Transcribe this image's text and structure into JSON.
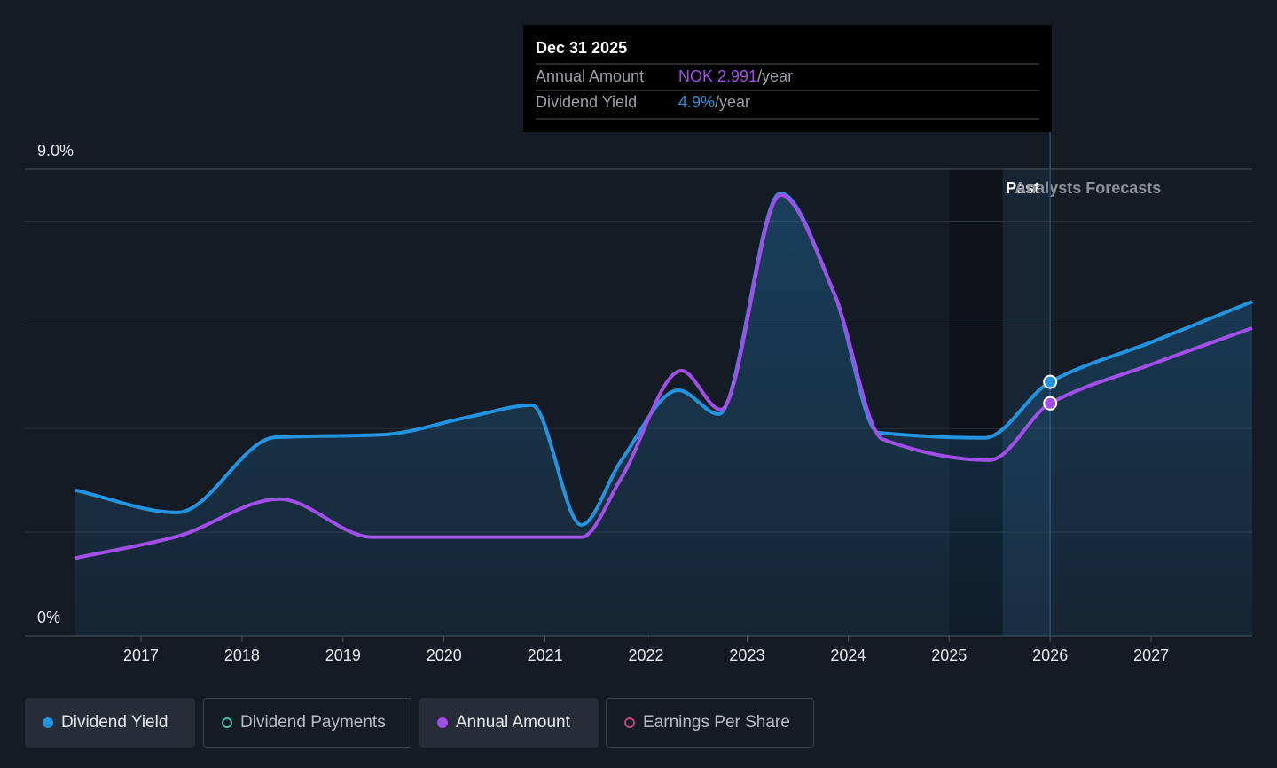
{
  "chart_data": {
    "type": "line",
    "ylim": [
      0,
      9
    ],
    "yticks": [
      {
        "value": 0,
        "label": "0%"
      },
      {
        "value": 9,
        "label": "9.0%"
      }
    ],
    "gridlines": [
      2,
      4,
      6,
      8
    ],
    "y2lim": [
      0,
      6.0
    ],
    "xlim": [
      2015.85,
      2028.0
    ],
    "xticks": [
      2017,
      2018,
      2019,
      2020,
      2021,
      2022,
      2023,
      2024,
      2025,
      2026,
      2027
    ],
    "past_region": [
      2025,
      2026
    ],
    "past_label": "Past",
    "forecast_label": "Analysts Forecasts",
    "series": [
      {
        "name": "Dividend Yield",
        "color": "#2394df",
        "x": [
          2016.35,
          2017.36,
          2018.33,
          2019.38,
          2020.26,
          2020.87,
          2021.36,
          2021.75,
          2022.32,
          2022.72,
          2023.33,
          2023.86,
          2024.3,
          2025.35,
          2026.0,
          2027.02,
          2028.0
        ],
        "values": [
          2.81,
          2.38,
          3.83,
          3.88,
          4.23,
          4.45,
          2.14,
          3.37,
          4.74,
          4.28,
          8.54,
          6.62,
          3.92,
          3.82,
          4.9,
          5.68,
          6.45
        ]
      },
      {
        "name": "Annual Amount",
        "color": "#a24ee8",
        "axis": "y2",
        "x": [
          2016.35,
          2017.36,
          2018.37,
          2019.29,
          2021.36,
          2021.75,
          2022.35,
          2022.74,
          2023.33,
          2023.86,
          2024.34,
          2025.4,
          2026.0,
          2027.02,
          2028.0
        ],
        "values": [
          1.0,
          1.28,
          1.76,
          1.27,
          1.27,
          2.02,
          3.41,
          2.91,
          5.67,
          4.41,
          2.53,
          2.26,
          2.991,
          3.5,
          3.96
        ]
      }
    ],
    "other_legend": [
      {
        "name": "Dividend Payments",
        "color": "#3fb8a6"
      },
      {
        "name": "Earnings Per Share",
        "color": "#c2417a"
      }
    ],
    "tooltip": {
      "date": "Dec 31 2025",
      "rows": [
        {
          "label": "Annual Amount",
          "value": "NOK 2.991",
          "unit": "/year"
        },
        {
          "label": "Dividend Yield",
          "value": "4.9%",
          "unit": "/year"
        }
      ]
    }
  }
}
